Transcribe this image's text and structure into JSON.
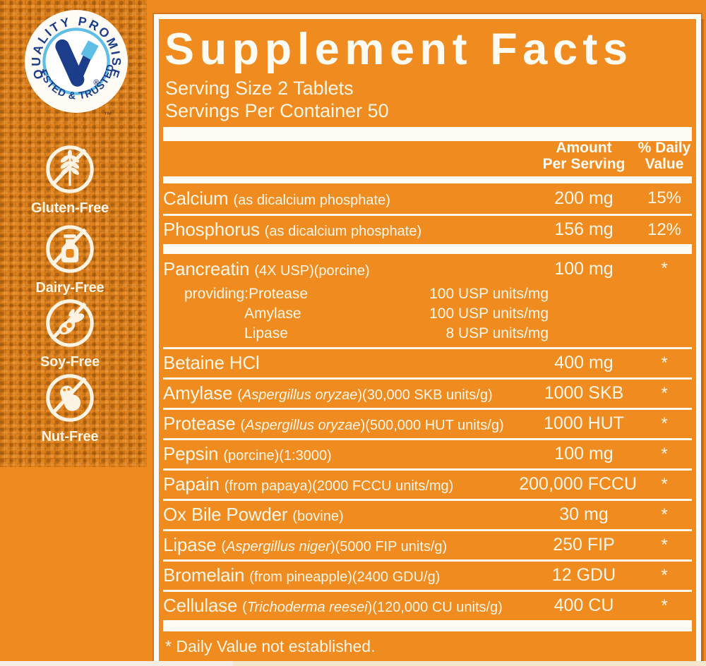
{
  "colors": {
    "background_orange": "#EE8A1F",
    "panel_orange": "#F08B20",
    "rule_white": "#FDFBF4",
    "text_cream": "#FCF6E6",
    "seal_navy": "#1C3D8A",
    "seal_light_blue": "#5FBEE6"
  },
  "seal": {
    "arc_top": "QUALITY PROMISE",
    "arc_bottom": "TESTED & TRUSTED",
    "center_letter": "V",
    "registered_mark": "®",
    "trademark_mark": "™"
  },
  "badges": [
    {
      "icon": "wheat-icon",
      "label": "Gluten-Free"
    },
    {
      "icon": "milk-bottle-icon",
      "label": "Dairy-Free"
    },
    {
      "icon": "soybean-icon",
      "label": "Soy-Free"
    },
    {
      "icon": "peanut-icon",
      "label": "Nut-Free"
    }
  ],
  "panel": {
    "title": "Supplement Facts",
    "serving_size": "Serving Size 2 Tablets",
    "servings_per_container": "Servings Per Container 50",
    "header": {
      "amount_line1": "Amount",
      "amount_line2": "Per Serving",
      "dv_line1": "% Daily",
      "dv_line2": "Value"
    },
    "rows": [
      {
        "name": "Calcium",
        "detail": "(as dicalcium phosphate)",
        "amount": "200 mg",
        "dv": "15%"
      },
      {
        "name": "Phosphorus",
        "detail": "(as dicalcium phosphate)",
        "amount": "156 mg",
        "dv": "12%",
        "divider_after": "thick"
      },
      {
        "name": "Pancreatin",
        "detail": "(4X USP)(porcine)",
        "amount": "100 mg",
        "dv": "*",
        "subs": [
          {
            "prefix": "providing:",
            "nutrient": "Protease",
            "value": "100 USP units/mg"
          },
          {
            "prefix": "",
            "nutrient": "Amylase",
            "value": "100 USP units/mg"
          },
          {
            "prefix": "",
            "nutrient": "Lipase",
            "value": "8 USP units/mg"
          }
        ]
      },
      {
        "name": "Betaine HCl",
        "detail": "",
        "amount": "400 mg",
        "dv": "*"
      },
      {
        "name": "Amylase",
        "detail_pre": "(",
        "detail_italic": "Aspergillus oryzae",
        "detail_post": ")(30,000 SKB units/g)",
        "amount": "1000 SKB",
        "dv": "*"
      },
      {
        "name": "Protease",
        "detail_pre": "(",
        "detail_italic": "Aspergillus oryzae",
        "detail_post": ")(500,000 HUT units/g)",
        "amount": "1000 HUT",
        "dv": "*"
      },
      {
        "name": "Pepsin",
        "detail": "(porcine)(1:3000)",
        "amount": "100 mg",
        "dv": "*"
      },
      {
        "name": "Papain",
        "detail": "(from papaya)(2000 FCCU units/mg)",
        "amount": "200,000 FCCU",
        "dv": "*"
      },
      {
        "name": "Ox Bile Powder",
        "detail": "(bovine)",
        "amount": "30 mg",
        "dv": "*"
      },
      {
        "name": "Lipase",
        "detail_pre": "(",
        "detail_italic": "Aspergillus niger",
        "detail_post": ")(5000 FIP units/g)",
        "amount": "250 FIP",
        "dv": "*"
      },
      {
        "name": "Bromelain",
        "detail": "(from pineapple)(2400 GDU/g)",
        "amount": "12 GDU",
        "dv": "*"
      },
      {
        "name": "Cellulase",
        "detail_pre": "(",
        "detail_italic": "Trichoderma reesei",
        "detail_post": ")(120,000 CU units/g)",
        "amount": "400 CU",
        "dv": "*"
      }
    ],
    "footnote": "* Daily Value not established."
  }
}
